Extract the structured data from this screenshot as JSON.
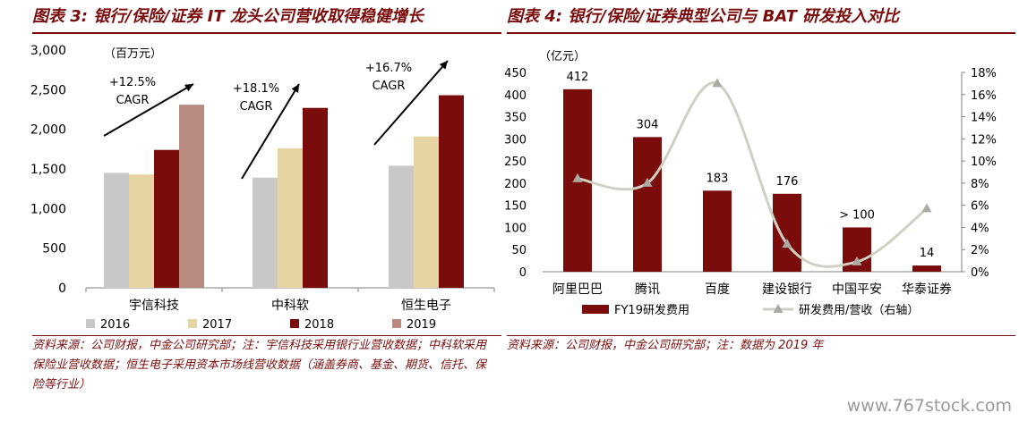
{
  "left": {
    "title": "图表 3: 银行/保险/证券 IT 龙头公司营收取得稳健增长",
    "source": "资料来源：公司财报，中金公司研究部；注：宇信科技采用银行业营收数据；中科软采用保险业营收数据；恒生电子采用资本市场线营收数据（涵盖券商、基金、期货、信托、保险等行业）"
  },
  "right": {
    "title": "图表 4: 银行/保险/证券典型公司与 BAT 研发投入对比",
    "source": "资料来源：公司财报，中金公司研究部；注：数据为 2019 年"
  },
  "watermark": "www.767stock.com",
  "chart_data": [
    {
      "type": "bar",
      "unit_label": "（百万元）",
      "categories": [
        "宇信科技",
        "中科软",
        "恒生电子"
      ],
      "series": [
        {
          "name": "2016",
          "color": "#c8c8c8",
          "values": [
            1450,
            1390,
            1540
          ]
        },
        {
          "name": "2017",
          "color": "#e6d5a3",
          "values": [
            1430,
            1760,
            1910
          ]
        },
        {
          "name": "2018",
          "color": "#7b0c0c",
          "values": [
            1740,
            2270,
            2430
          ]
        },
        {
          "name": "2019",
          "color": "#b88a80",
          "values": [
            2310,
            null,
            null
          ]
        }
      ],
      "annotations": [
        "+12.5%\nCAGR",
        "+18.1%\nCAGR",
        "+16.7%\nCAGR"
      ],
      "y_ticks": [
        "0",
        "500",
        "1,000",
        "1,500",
        "2,000",
        "2,500",
        "3,000"
      ],
      "ylim": [
        0,
        3000
      ],
      "legend_position": "bottom"
    },
    {
      "type": "bar",
      "unit_label": "（亿元）",
      "categories": [
        "阿里巴巴",
        "腾讯",
        "百度",
        "建设银行",
        "中国平安",
        "华泰证券"
      ],
      "bar_series": {
        "name": "FY19研发费用",
        "color": "#7b0c0c",
        "values": [
          412,
          304,
          183,
          176,
          100,
          14
        ]
      },
      "bar_labels": [
        "412",
        "304",
        "183",
        "176",
        "> 100",
        "14"
      ],
      "line_series": {
        "name": "研发费用/营收（右轴）",
        "color": "#cfcfc4",
        "values_pct": [
          8.4,
          8.0,
          17.0,
          2.5,
          0.9,
          5.7
        ]
      },
      "y_left_ticks": [
        "0",
        "50",
        "100",
        "150",
        "200",
        "250",
        "300",
        "350",
        "400",
        "450"
      ],
      "y_right_ticks": [
        "0%",
        "2%",
        "4%",
        "6%",
        "8%",
        "10%",
        "12%",
        "14%",
        "16%",
        "18%"
      ],
      "ylim_left": [
        0,
        450
      ],
      "ylim_right": [
        0,
        18
      ],
      "legend_position": "bottom"
    }
  ]
}
